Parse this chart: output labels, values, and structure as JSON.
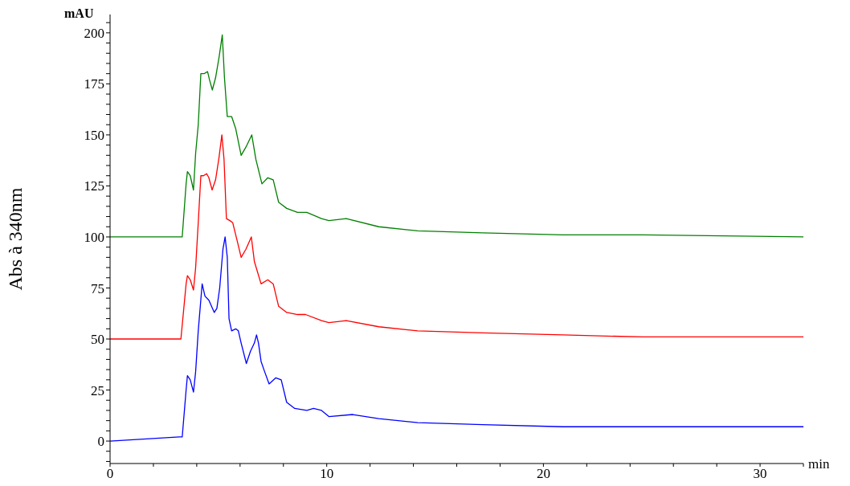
{
  "chart_data": {
    "type": "line",
    "xlabel": "min",
    "ylabel": "Abs à 340nm",
    "annotations": [
      "mAU"
    ],
    "xlim": [
      0,
      32
    ],
    "ylim": [
      -11,
      209
    ],
    "xticks": [
      0,
      {
        "value": 2,
        "label": null
      },
      {
        "value": 4,
        "label": null
      },
      {
        "value": 6,
        "label": null
      },
      {
        "value": 8,
        "label": null
      },
      10,
      {
        "value": 12,
        "label": null
      },
      {
        "value": 14,
        "label": null
      },
      {
        "value": 16,
        "label": null
      },
      {
        "value": 18,
        "label": null
      },
      20,
      {
        "value": 22,
        "label": null
      },
      {
        "value": 24,
        "label": null
      },
      {
        "value": 26,
        "label": null
      },
      {
        "value": 28,
        "label": null
      },
      30,
      {
        "value": 32,
        "label": null
      }
    ],
    "yticks": [
      {
        "value": -10,
        "label": null
      },
      {
        "value": -5,
        "label": null
      },
      0,
      {
        "value": 5,
        "label": null
      },
      {
        "value": 10,
        "label": null
      },
      {
        "value": 15,
        "label": null
      },
      {
        "value": 20,
        "label": null
      },
      25,
      {
        "value": 30,
        "label": null
      },
      {
        "value": 35,
        "label": null
      },
      {
        "value": 40,
        "label": null
      },
      {
        "value": 45,
        "label": null
      },
      50,
      {
        "value": 55,
        "label": null
      },
      {
        "value": 60,
        "label": null
      },
      {
        "value": 65,
        "label": null
      },
      {
        "value": 70,
        "label": null
      },
      75,
      {
        "value": 80,
        "label": null
      },
      {
        "value": 85,
        "label": null
      },
      {
        "value": 90,
        "label": null
      },
      {
        "value": 95,
        "label": null
      },
      100,
      {
        "value": 105,
        "label": null
      },
      {
        "value": 110,
        "label": null
      },
      {
        "value": 115,
        "label": null
      },
      {
        "value": 120,
        "label": null
      },
      125,
      {
        "value": 130,
        "label": null
      },
      {
        "value": 135,
        "label": null
      },
      {
        "value": 140,
        "label": null
      },
      {
        "value": 145,
        "label": null
      },
      150,
      {
        "value": 155,
        "label": null
      },
      {
        "value": 160,
        "label": null
      },
      {
        "value": 165,
        "label": null
      },
      {
        "value": 170,
        "label": null
      },
      175,
      {
        "value": 180,
        "label": null
      },
      {
        "value": 185,
        "label": null
      },
      {
        "value": 190,
        "label": null
      },
      {
        "value": 195,
        "label": null
      },
      200,
      {
        "value": 205,
        "label": null
      }
    ],
    "marker": "none",
    "line_style": "solid",
    "series": [
      {
        "color": "#008000",
        "x": [
          0,
          3.33,
          3.51,
          3.57,
          3.7,
          3.85,
          3.95,
          4.07,
          4.19,
          4.34,
          4.5,
          4.59,
          4.72,
          4.87,
          5.03,
          5.18,
          5.28,
          5.41,
          5.61,
          5.8,
          6.05,
          6.27,
          6.54,
          6.73,
          7.01,
          7.28,
          7.53,
          7.78,
          8.15,
          8.65,
          9.08,
          9.76,
          10.1,
          10.9,
          12.4,
          14.2,
          17.2,
          20.9,
          24.6,
          32
        ],
        "values": [
          100,
          100,
          126,
          132,
          130,
          123,
          141,
          155,
          180,
          180,
          181,
          177,
          172,
          178,
          188,
          199,
          178,
          159,
          159,
          153,
          140,
          144,
          150,
          138,
          126,
          129,
          128,
          117,
          114,
          112,
          112,
          109,
          108,
          109,
          105,
          103,
          102,
          101,
          101,
          100
        ]
      },
      {
        "color": "#ff0000",
        "x": [
          0,
          3.27,
          3.51,
          3.57,
          3.7,
          3.85,
          3.95,
          4.07,
          4.19,
          4.31,
          4.46,
          4.56,
          4.71,
          4.87,
          5.03,
          5.16,
          5.26,
          5.37,
          5.53,
          5.66,
          5.87,
          6.05,
          6.27,
          6.52,
          6.66,
          6.97,
          7.28,
          7.53,
          7.78,
          8.15,
          8.65,
          9.02,
          9.76,
          10.1,
          10.9,
          12.4,
          14.2,
          17.2,
          20.9,
          24.6,
          32
        ],
        "values": [
          50,
          50,
          77,
          81,
          79,
          74,
          85,
          107,
          130,
          130,
          131,
          129,
          123,
          128,
          139,
          150,
          138,
          109,
          108,
          107,
          98,
          90,
          94,
          100,
          88,
          77,
          79,
          77,
          66,
          63,
          62,
          62,
          59,
          58,
          59,
          56,
          54,
          53,
          52,
          51,
          51
        ]
      },
      {
        "color": "#0000ff",
        "x": [
          0,
          3.2,
          3.33,
          3.51,
          3.57,
          3.7,
          3.85,
          3.95,
          4.07,
          4.25,
          4.38,
          4.56,
          4.81,
          4.93,
          5.06,
          5.21,
          5.31,
          5.41,
          5.49,
          5.61,
          5.8,
          5.92,
          6.05,
          6.29,
          6.48,
          6.66,
          6.76,
          6.85,
          6.97,
          7.1,
          7.34,
          7.65,
          7.9,
          8.15,
          8.52,
          9.08,
          9.39,
          9.76,
          10.1,
          11.2,
          12.4,
          14.2,
          17.2,
          20.9,
          24.6,
          32
        ],
        "values": [
          0,
          2,
          2,
          25,
          32,
          30,
          24,
          34,
          54,
          77,
          71,
          69,
          63,
          65,
          75,
          94,
          100,
          90,
          60,
          54,
          55,
          54,
          48,
          38,
          44,
          48,
          52,
          48,
          39,
          35,
          28,
          31,
          30,
          19,
          16,
          15,
          16,
          15,
          12,
          13,
          11,
          9,
          8,
          7,
          7,
          7
        ]
      }
    ]
  }
}
